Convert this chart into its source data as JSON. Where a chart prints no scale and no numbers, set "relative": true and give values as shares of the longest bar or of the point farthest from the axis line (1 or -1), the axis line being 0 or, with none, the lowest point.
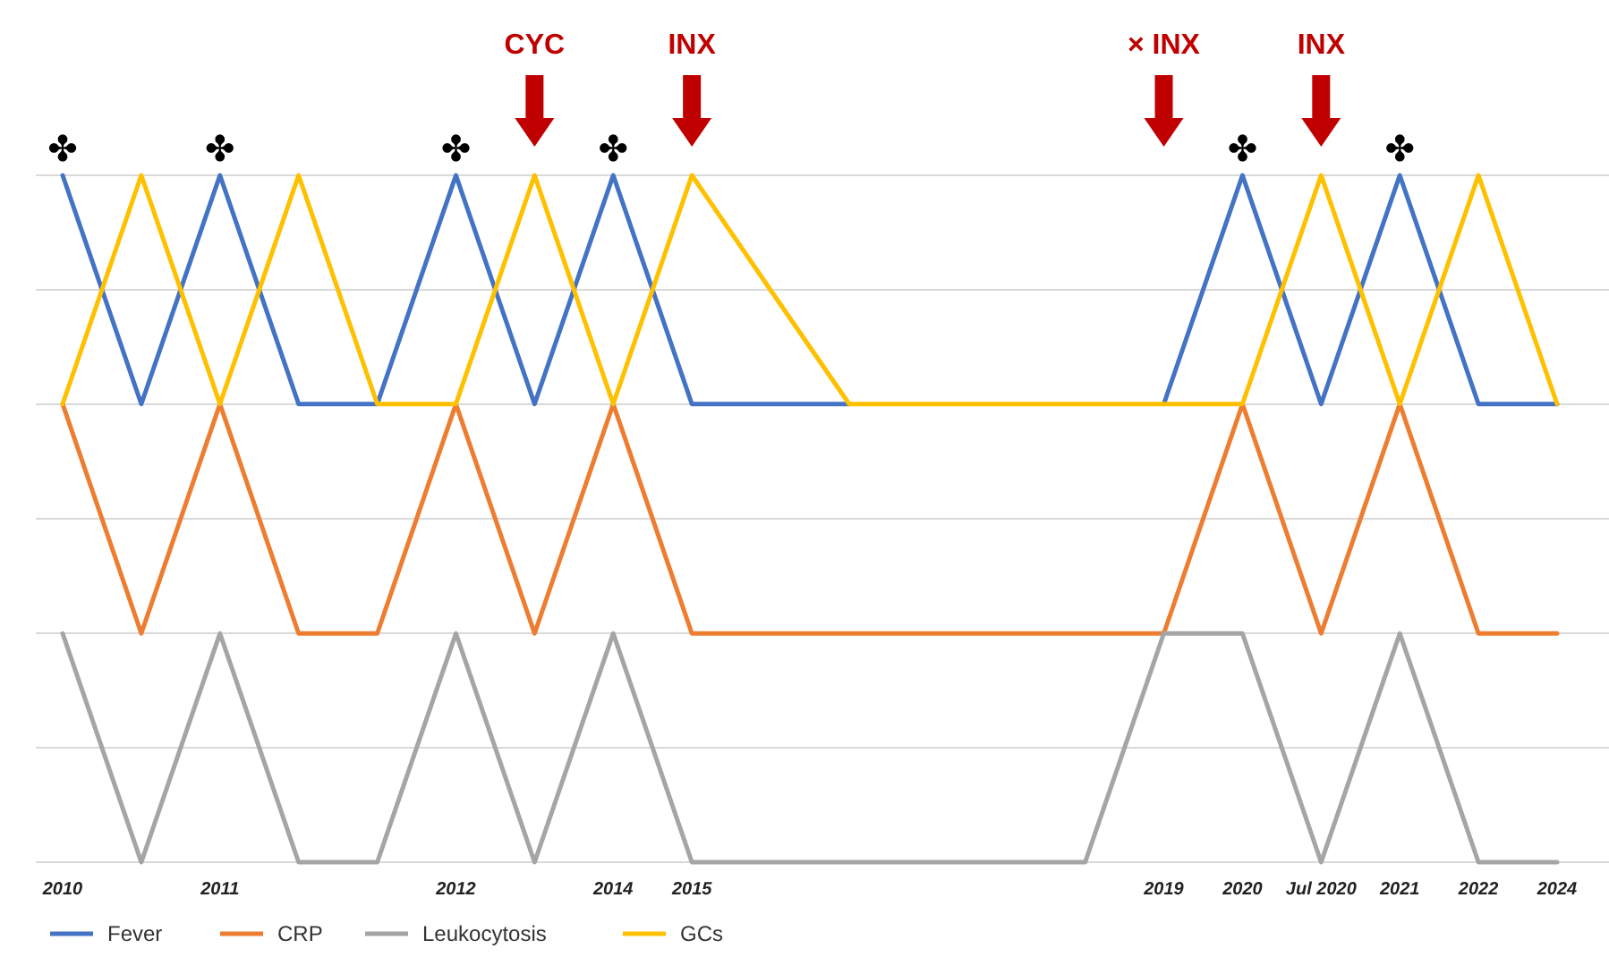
{
  "chart_data": {
    "type": "line",
    "relative": true,
    "grid": true,
    "legend": "bottom",
    "marker": "none",
    "line_style": "solid",
    "categories": [
      "2010",
      null,
      "2011",
      null,
      null,
      "2012",
      null,
      "2014",
      "2015",
      null,
      null,
      null,
      null,
      null,
      "2019",
      "2020",
      "Jul 2020",
      "2021",
      "2022",
      "2024"
    ],
    "series": [
      {
        "name": "Fever",
        "color": "#4472c4",
        "values": [
          1,
          0.667,
          1,
          0.667,
          0.667,
          1,
          0.667,
          1,
          0.667,
          0.667,
          0.667,
          null,
          null,
          null,
          0.667,
          1,
          0.667,
          1,
          0.667,
          0.667
        ]
      },
      {
        "name": "CRP",
        "color": "#ed7d31",
        "values": [
          0.667,
          0.333,
          0.667,
          0.333,
          0.333,
          0.667,
          0.333,
          0.667,
          0.333,
          0.333,
          0.333,
          0.333,
          0.333,
          0.333,
          0.333,
          0.667,
          0.333,
          0.667,
          0.333,
          0.333
        ]
      },
      {
        "name": "Leukocytosis",
        "color": "#a5a5a5",
        "values": [
          0.333,
          0,
          0.333,
          0,
          0,
          0.333,
          0,
          0.333,
          0,
          0,
          0,
          0,
          0,
          0,
          0.333,
          0.333,
          0,
          0.333,
          0,
          0
        ]
      },
      {
        "name": "GCs",
        "color": "#ffc000",
        "values": [
          0.667,
          1,
          0.667,
          1,
          0.667,
          0.667,
          1,
          0.667,
          1,
          0.833,
          0.667,
          0.667,
          0.667,
          0.667,
          0.667,
          0.667,
          1,
          0.667,
          1,
          0.667
        ]
      }
    ],
    "annotations": [
      {
        "text": "✤",
        "x": "2010",
        "y": 1
      },
      {
        "text": "✤",
        "x": "2011",
        "y": 1
      },
      {
        "text": "✤",
        "x": "2012",
        "y": 1
      },
      "CYC",
      {
        "text": "✤",
        "x": "2014",
        "y": 1
      },
      "INX",
      "× INX",
      {
        "text": "✤",
        "x": "2020",
        "y": 1
      },
      "INX",
      {
        "text": "✤",
        "x": "2021",
        "y": 1
      }
    ]
  }
}
